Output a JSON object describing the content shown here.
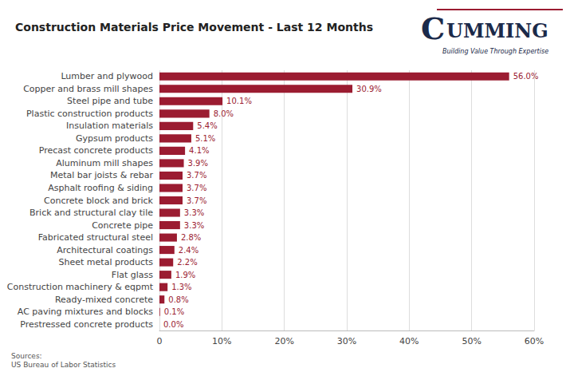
{
  "chart_data": {
    "type": "bar",
    "orientation": "horizontal",
    "title": "Construction Materials Price Movement - Last 12 Months",
    "categories": [
      "Prestressed concrete products",
      "AC paving mixtures and blocks",
      "Ready-mixed concrete",
      "Construction machinery & eqpmt",
      "Flat glass",
      "Sheet metal products",
      "Architectural coatings",
      "Fabricated structural steel",
      "Concrete pipe",
      "Brick and structural clay tile",
      "Concrete block and brick",
      "Asphalt roofing & siding",
      "Metal bar joists & rebar",
      "Aluminum mill shapes",
      "Precast concrete products",
      "Gypsum products",
      "Insulation materials",
      "Plastic construction products",
      "Steel pipe and tube",
      "Copper and brass mill shapes",
      "Lumber and plywood"
    ],
    "values": [
      0.0,
      0.1,
      0.8,
      1.3,
      1.9,
      2.2,
      2.4,
      2.8,
      3.3,
      3.3,
      3.7,
      3.7,
      3.7,
      3.9,
      4.1,
      5.1,
      5.4,
      8.0,
      10.1,
      30.9,
      56.0
    ],
    "value_labels": [
      "0.0%",
      "0.1%",
      "0.8%",
      "1.3%",
      "1.9%",
      "2.2%",
      "2.4%",
      "2.8%",
      "3.3%",
      "3.3%",
      "3.7%",
      "3.7%",
      "3.7%",
      "3.9%",
      "4.1%",
      "5.1%",
      "5.4%",
      "8.0%",
      "10.1%",
      "30.9%",
      "56.0%"
    ],
    "data_labels": true,
    "color": "#9B1C31",
    "xlim": [
      0,
      60
    ],
    "xticks": [
      0,
      {
        "value": 10,
        "label": "10%"
      },
      {
        "value": 20,
        "label": "20%"
      },
      {
        "value": 30,
        "label": "30%"
      },
      {
        "value": 40,
        "label": "40%"
      },
      {
        "value": 50,
        "label": "50%"
      },
      {
        "value": 60,
        "label": "60%"
      }
    ],
    "grid": true,
    "annotations": [
      "Sources:\nUS Bureau of Labor Statistics",
      "C",
      "UMMING",
      "Building Value Through Expertise"
    ]
  }
}
